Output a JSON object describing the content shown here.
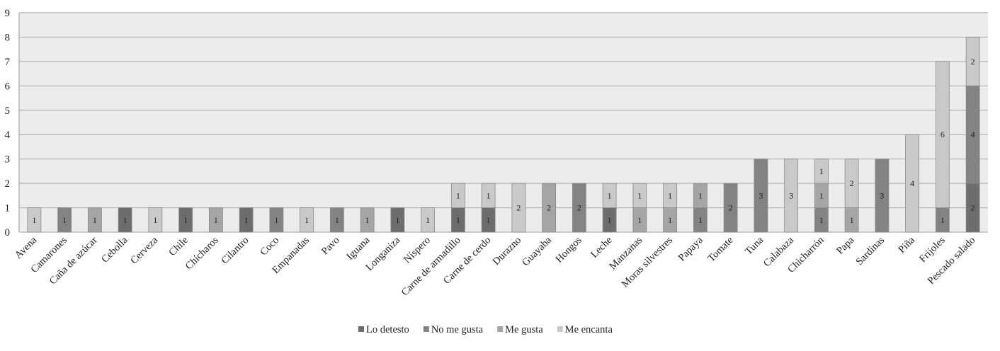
{
  "chart_data": {
    "type": "stacked-bar",
    "title": "",
    "xlabel": "",
    "ylabel": "",
    "ylim": [
      0,
      9
    ],
    "yticks": [
      0,
      1,
      2,
      3,
      4,
      5,
      6,
      7,
      8,
      9
    ],
    "grid": true,
    "legend_position": "bottom",
    "categories": [
      "Avena",
      "Camarones",
      "Caña de azúcar",
      "Cebolla",
      "Cerveza",
      "Chile",
      "Chícharos",
      "Cilantro",
      "Coco",
      "Empanadas",
      "Pavo",
      "Iguana",
      "Longaniza",
      "Níspero",
      "Carne de armadillo",
      "Carne de cerdo",
      "Durazno",
      "Guayaba",
      "Hongos",
      "Leche",
      "Manzanas",
      "Moras silvestres",
      "Papaya",
      "Tomate",
      "Tuna",
      "Calabaza",
      "Chicharrón",
      "Papa",
      "Sardinas",
      "Piña",
      "Frijoles",
      "Pescado salado"
    ],
    "series": [
      {
        "name": "Lo detesto",
        "color": "#6b6d6f",
        "values": [
          0,
          0,
          0,
          1,
          0,
          1,
          0,
          1,
          0,
          0,
          0,
          0,
          1,
          0,
          1,
          1,
          0,
          0,
          0,
          1,
          0,
          0,
          0,
          0,
          0,
          0,
          0,
          0,
          0,
          0,
          0,
          2
        ]
      },
      {
        "name": "No me gusta",
        "color": "#818385",
        "values": [
          0,
          1,
          0,
          0,
          0,
          0,
          0,
          0,
          1,
          0,
          1,
          0,
          0,
          0,
          0,
          0,
          0,
          0,
          2,
          0,
          0,
          0,
          1,
          2,
          3,
          0,
          1,
          0,
          3,
          0,
          1,
          4
        ]
      },
      {
        "name": "Me gusta",
        "color": "#a3a5a6",
        "values": [
          0,
          0,
          1,
          0,
          0,
          0,
          1,
          0,
          0,
          0,
          0,
          1,
          0,
          0,
          0,
          0,
          0,
          2,
          0,
          0,
          1,
          1,
          1,
          0,
          0,
          0,
          1,
          1,
          0,
          0,
          0,
          0
        ]
      },
      {
        "name": "Me encanta",
        "color": "#c8c9c9",
        "values": [
          1,
          0,
          0,
          0,
          1,
          0,
          0,
          0,
          0,
          1,
          0,
          0,
          0,
          1,
          1,
          1,
          2,
          0,
          0,
          1,
          1,
          1,
          0,
          0,
          0,
          3,
          1,
          2,
          0,
          4,
          6,
          2
        ]
      }
    ]
  }
}
